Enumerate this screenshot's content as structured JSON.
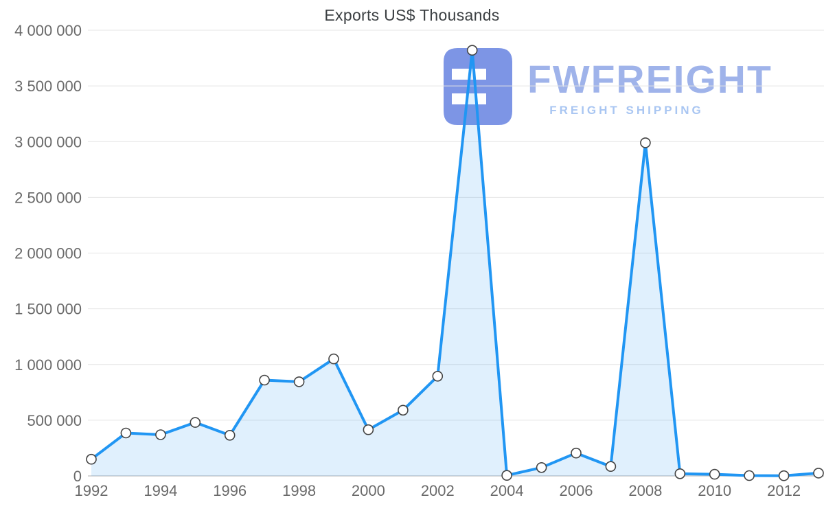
{
  "chart_data": {
    "type": "area",
    "title": "Exports US$ Thousands",
    "xlabel": "",
    "ylabel": "",
    "categories": [
      1992,
      1993,
      1994,
      1995,
      1996,
      1997,
      1998,
      1999,
      2000,
      2001,
      2002,
      2003,
      2004,
      2005,
      2006,
      2007,
      2008,
      2009,
      2010,
      2011,
      2012,
      2013
    ],
    "values": [
      150000,
      385000,
      370000,
      480000,
      365000,
      860000,
      845000,
      1050000,
      415000,
      590000,
      895000,
      3820000,
      5000,
      75000,
      205000,
      85000,
      2990000,
      20000,
      15000,
      3000,
      2000,
      25000
    ],
    "ylim": [
      0,
      4000000
    ],
    "y_tick_values": [
      0,
      500000,
      1000000,
      1500000,
      2000000,
      2500000,
      3000000,
      3500000,
      4000000
    ],
    "y_tick_labels": [
      "0",
      "500 000",
      "1 000 000",
      "1 500 000",
      "2 000 000",
      "2 500 000",
      "3 000 000",
      "3 500 000",
      "4 000 000"
    ],
    "x_ticks": [
      1992,
      1994,
      1996,
      1998,
      2000,
      2002,
      2004,
      2006,
      2008,
      2010,
      2012
    ],
    "grid": true,
    "legend": "none",
    "colors": {
      "line": "#2196f3",
      "fill": "rgba(33,150,243,0.14)",
      "marker_fill": "#ffffff",
      "marker_stroke": "#444444",
      "grid": "#e4e4e4",
      "axis": "#c9c9c9"
    }
  },
  "watermark": {
    "brand": "FWFREIGHT",
    "tagline": "FREIGHT SHIPPING",
    "logo_color": "#7d95e5",
    "brand_color": "#9fb3ea",
    "tagline_color": "#a9c6f2"
  }
}
